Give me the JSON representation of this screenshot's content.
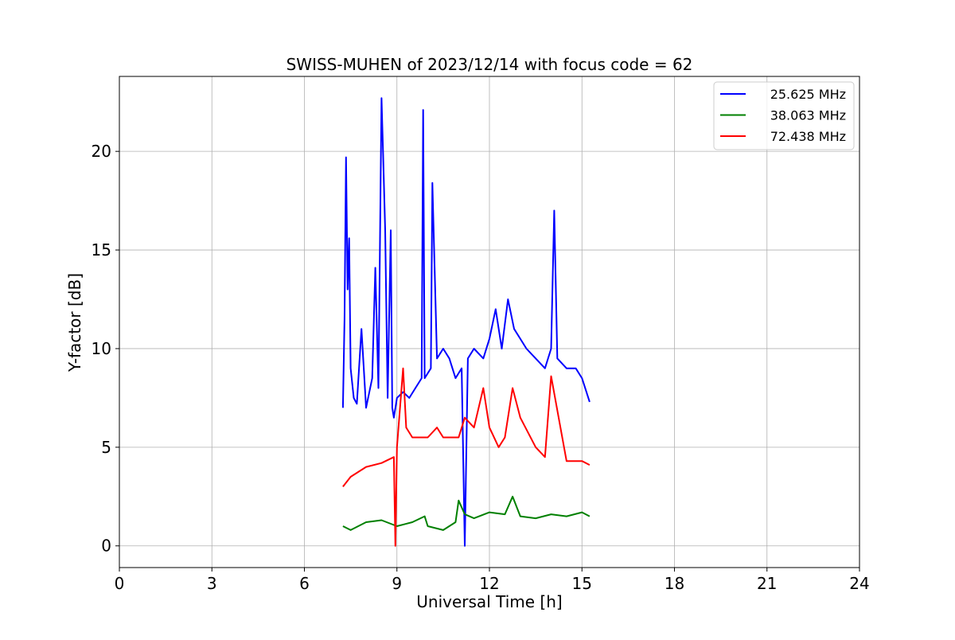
{
  "chart_data": {
    "type": "line",
    "title": "SWISS-MUHEN of 2023/12/14 with focus code = 62",
    "xlabel": "Universal Time [h]",
    "ylabel": "Y-factor [dB]",
    "xlim": [
      0,
      24
    ],
    "ylim": [
      -1.1,
      23.8
    ],
    "xticks": [
      0,
      3,
      6,
      9,
      12,
      15,
      18,
      21,
      24
    ],
    "yticks": [
      0,
      5,
      10,
      15,
      20
    ],
    "grid": true,
    "legend_position": "top-right",
    "series": [
      {
        "name": "25.625 MHz",
        "color": "#0000ff",
        "x": [
          7.25,
          7.3,
          7.35,
          7.4,
          7.45,
          7.5,
          7.6,
          7.7,
          7.85,
          8.0,
          8.2,
          8.3,
          8.4,
          8.5,
          8.55,
          8.62,
          8.7,
          8.8,
          8.85,
          8.9,
          9.0,
          9.2,
          9.4,
          9.6,
          9.8,
          9.85,
          9.9,
          10.1,
          10.15,
          10.3,
          10.5,
          10.7,
          10.9,
          11.1,
          11.2,
          11.3,
          11.5,
          11.8,
          12.0,
          12.2,
          12.4,
          12.6,
          12.8,
          13.0,
          13.2,
          13.5,
          13.8,
          14.0,
          14.1,
          14.2,
          14.5,
          14.8,
          15.0,
          15.25
        ],
        "y": [
          7.0,
          11.5,
          19.7,
          13.0,
          15.6,
          9.0,
          7.5,
          7.2,
          11.0,
          7.0,
          8.5,
          14.1,
          8.0,
          22.7,
          20.0,
          16.0,
          7.5,
          16.0,
          7.0,
          6.5,
          7.5,
          7.8,
          7.5,
          8.0,
          8.5,
          22.1,
          8.5,
          9.0,
          18.4,
          9.5,
          10.0,
          9.5,
          8.5,
          9.0,
          0.0,
          9.5,
          10.0,
          9.5,
          10.5,
          12.0,
          10.0,
          12.5,
          11.0,
          10.5,
          10.0,
          9.5,
          9.0,
          10.0,
          17.0,
          9.5,
          9.0,
          9.0,
          8.5,
          7.3
        ]
      },
      {
        "name": "38.063 MHz",
        "color": "#008000",
        "x": [
          7.25,
          7.5,
          8.0,
          8.5,
          9.0,
          9.5,
          9.9,
          10.0,
          10.5,
          10.9,
          11.0,
          11.2,
          11.5,
          12.0,
          12.5,
          12.75,
          13.0,
          13.5,
          14.0,
          14.5,
          15.0,
          15.25
        ],
        "y": [
          1.0,
          0.8,
          1.2,
          1.3,
          1.0,
          1.2,
          1.5,
          1.0,
          0.8,
          1.2,
          2.3,
          1.6,
          1.4,
          1.7,
          1.6,
          2.5,
          1.5,
          1.4,
          1.6,
          1.5,
          1.7,
          1.5
        ]
      },
      {
        "name": "72.438 MHz",
        "color": "#ff0000",
        "x": [
          7.25,
          7.5,
          8.0,
          8.5,
          8.9,
          8.95,
          9.0,
          9.2,
          9.3,
          9.5,
          10.0,
          10.3,
          10.5,
          11.0,
          11.2,
          11.5,
          11.8,
          12.0,
          12.3,
          12.5,
          12.75,
          13.0,
          13.5,
          13.8,
          14.0,
          14.5,
          15.0,
          15.25
        ],
        "y": [
          3.0,
          3.5,
          4.0,
          4.2,
          4.5,
          0.0,
          5.0,
          9.0,
          6.0,
          5.5,
          5.5,
          6.0,
          5.5,
          5.5,
          6.5,
          6.0,
          8.0,
          6.0,
          5.0,
          5.5,
          8.0,
          6.5,
          5.0,
          4.5,
          8.6,
          4.3,
          4.3,
          4.1
        ]
      }
    ]
  }
}
